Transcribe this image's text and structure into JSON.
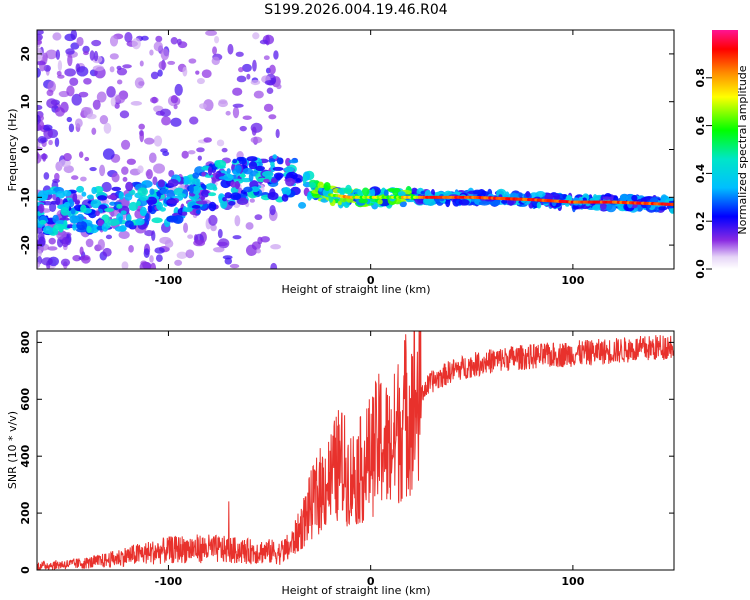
{
  "title": "S199.2026.004.19.46.R04",
  "chart_data": [
    {
      "type": "heatmap",
      "xlabel": "Height of straight line (km)",
      "ylabel": "Frequency (Hz)",
      "xlim": [
        -165,
        150
      ],
      "ylim": [
        -25,
        25
      ],
      "xticks": [
        -100,
        0,
        100
      ],
      "xtick_labels": [
        "-100",
        "0",
        "100"
      ],
      "yticks": [
        -20,
        -10,
        0,
        10,
        20
      ],
      "ytick_labels": [
        "-20",
        "-10",
        "0",
        "10",
        "20"
      ],
      "ridge": {
        "x": [
          -150,
          -120,
          -100,
          -80,
          -60,
          -40,
          -30,
          -20,
          -10,
          0,
          10,
          20,
          50,
          80,
          100,
          120,
          150
        ],
        "frequency": [
          -13,
          -12,
          -11,
          -8,
          -6,
          -6,
          -8,
          -9.5,
          -10,
          -10,
          -10,
          -10,
          -10,
          -10.5,
          -11,
          -11,
          -11.5
        ]
      },
      "colorbar": {
        "label": "Normalized spectral amplitude",
        "ticks": [
          0.0,
          0.2,
          0.4,
          0.6,
          0.8
        ],
        "tick_labels": [
          "0.0",
          "0.2",
          "0.4",
          "0.6",
          "0.8"
        ],
        "range": [
          0,
          1
        ]
      }
    },
    {
      "type": "line",
      "xlabel": "Height of straight line (km)",
      "ylabel": "SNR (10 * v/v)",
      "xlim": [
        -165,
        150
      ],
      "ylim": [
        0,
        840
      ],
      "xticks": [
        -100,
        0,
        100
      ],
      "xtick_labels": [
        "-100",
        "0",
        "100"
      ],
      "yticks": [
        0,
        200,
        400,
        600,
        800
      ],
      "ytick_labels": [
        "0",
        "200",
        "400",
        "600",
        "800"
      ],
      "series": [
        {
          "name": "SNR",
          "color": "#e8312c",
          "x": [
            -165,
            -150,
            -140,
            -130,
            -120,
            -110,
            -100,
            -90,
            -80,
            -70,
            -60,
            -50,
            -45,
            -40,
            -35,
            -30,
            -25,
            -20,
            -15,
            -10,
            -5,
            0,
            5,
            10,
            15,
            20,
            25,
            30,
            40,
            50,
            60,
            70,
            80,
            90,
            100,
            110,
            120,
            130,
            140,
            150
          ],
          "values": [
            15,
            20,
            25,
            35,
            50,
            60,
            70,
            75,
            75,
            70,
            65,
            65,
            60,
            80,
            140,
            220,
            280,
            320,
            380,
            320,
            350,
            400,
            460,
            420,
            520,
            580,
            620,
            660,
            700,
            720,
            735,
            745,
            750,
            755,
            760,
            765,
            770,
            775,
            780,
            790
          ]
        }
      ]
    }
  ]
}
